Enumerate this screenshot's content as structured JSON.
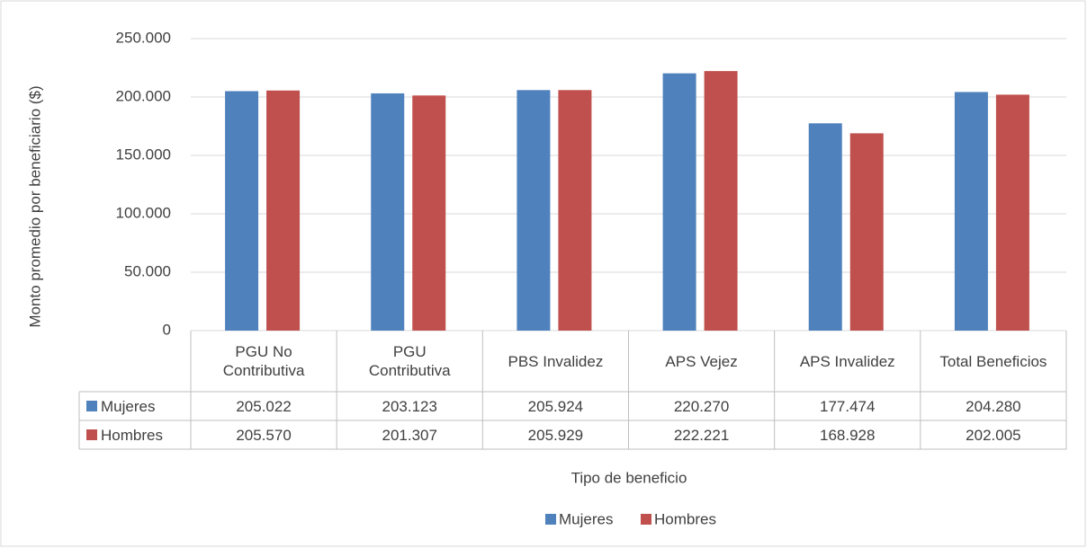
{
  "chart_data": {
    "type": "bar",
    "categories": [
      "PGU No Contributiva",
      "PGU Contributiva",
      "PBS Invalidez",
      "APS Vejez",
      "APS Invalidez",
      "Total Beneficios"
    ],
    "series": [
      {
        "name": "Mujeres",
        "color": "#4f81bd",
        "values": [
          205022,
          203123,
          205924,
          220270,
          177474,
          204280
        ],
        "value_labels": [
          "205.022",
          "203.123",
          "205.924",
          "220.270",
          "177.474",
          "204.280"
        ]
      },
      {
        "name": "Hombres",
        "color": "#c0504d",
        "values": [
          205570,
          201307,
          205929,
          222221,
          168928,
          202005
        ],
        "value_labels": [
          "205.570",
          "201.307",
          "205.929",
          "222.221",
          "168.928",
          "202.005"
        ]
      }
    ],
    "y_label": "Monto promedio por beneficiario ($)",
    "x_label": "Tipo de beneficio",
    "ylim": [
      0,
      250000
    ],
    "yticks": [
      0,
      {
        "value": 50000,
        "label": "50.000"
      },
      {
        "value": 100000,
        "label": "100.000"
      },
      {
        "value": 150000,
        "label": "150.000"
      },
      {
        "value": 200000,
        "label": "200.000"
      },
      {
        "value": 250000,
        "label": "250.000"
      }
    ],
    "grid": true,
    "legend": "bottom"
  }
}
